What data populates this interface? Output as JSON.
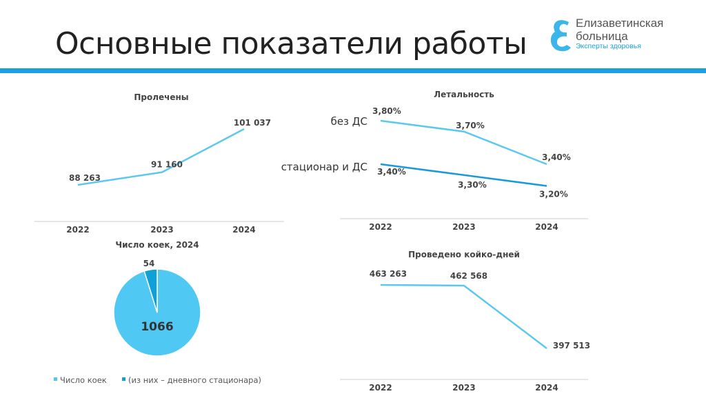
{
  "header": {
    "title": "Основные показатели работы",
    "accent": "#1ba1e2"
  },
  "logo": {
    "line1": "Елизаветинская",
    "line2": "больница",
    "tagline": "Эксперты здоровья"
  },
  "chart_data": [
    {
      "type": "line",
      "title": "Пролечены",
      "categories": [
        "2022",
        "2023",
        "2024"
      ],
      "series": [
        {
          "values": [
            88263,
            91160,
            101037
          ],
          "labels": [
            "88 263",
            "91 160",
            "101 037"
          ],
          "color": "#5bc8f0"
        }
      ]
    },
    {
      "type": "line",
      "title": "Летальность",
      "categories": [
        "2022",
        "2023",
        "2024"
      ],
      "series": [
        {
          "name": "без ДС",
          "values": [
            3.8,
            3.7,
            3.4
          ],
          "labels": [
            "3,80%",
            "3,70%",
            "3,40%"
          ],
          "color": "#5bc8f0"
        },
        {
          "name": "стационар и ДС",
          "values": [
            3.4,
            3.3,
            3.2
          ],
          "labels": [
            "3,40%",
            "3,30%",
            "3,20%"
          ],
          "color": "#1a9bd7"
        }
      ]
    },
    {
      "type": "pie",
      "title": "Число коек, 2024",
      "slices": [
        {
          "name": "Число коек",
          "value": 1066,
          "label": "1066",
          "color": "#4fc8f4"
        },
        {
          "name": "(из них – дневного стационара)",
          "value": 54,
          "label": "54",
          "color": "#0fa0d8"
        }
      ],
      "legend": "bottom"
    },
    {
      "type": "line",
      "title": "Проведено койко-дней",
      "categories": [
        "2022",
        "2023",
        "2024"
      ],
      "series": [
        {
          "values": [
            463263,
            462568,
            397513
          ],
          "labels": [
            "463 263",
            "462 568",
            "397 513"
          ],
          "color": "#5bc8f0"
        }
      ]
    }
  ]
}
